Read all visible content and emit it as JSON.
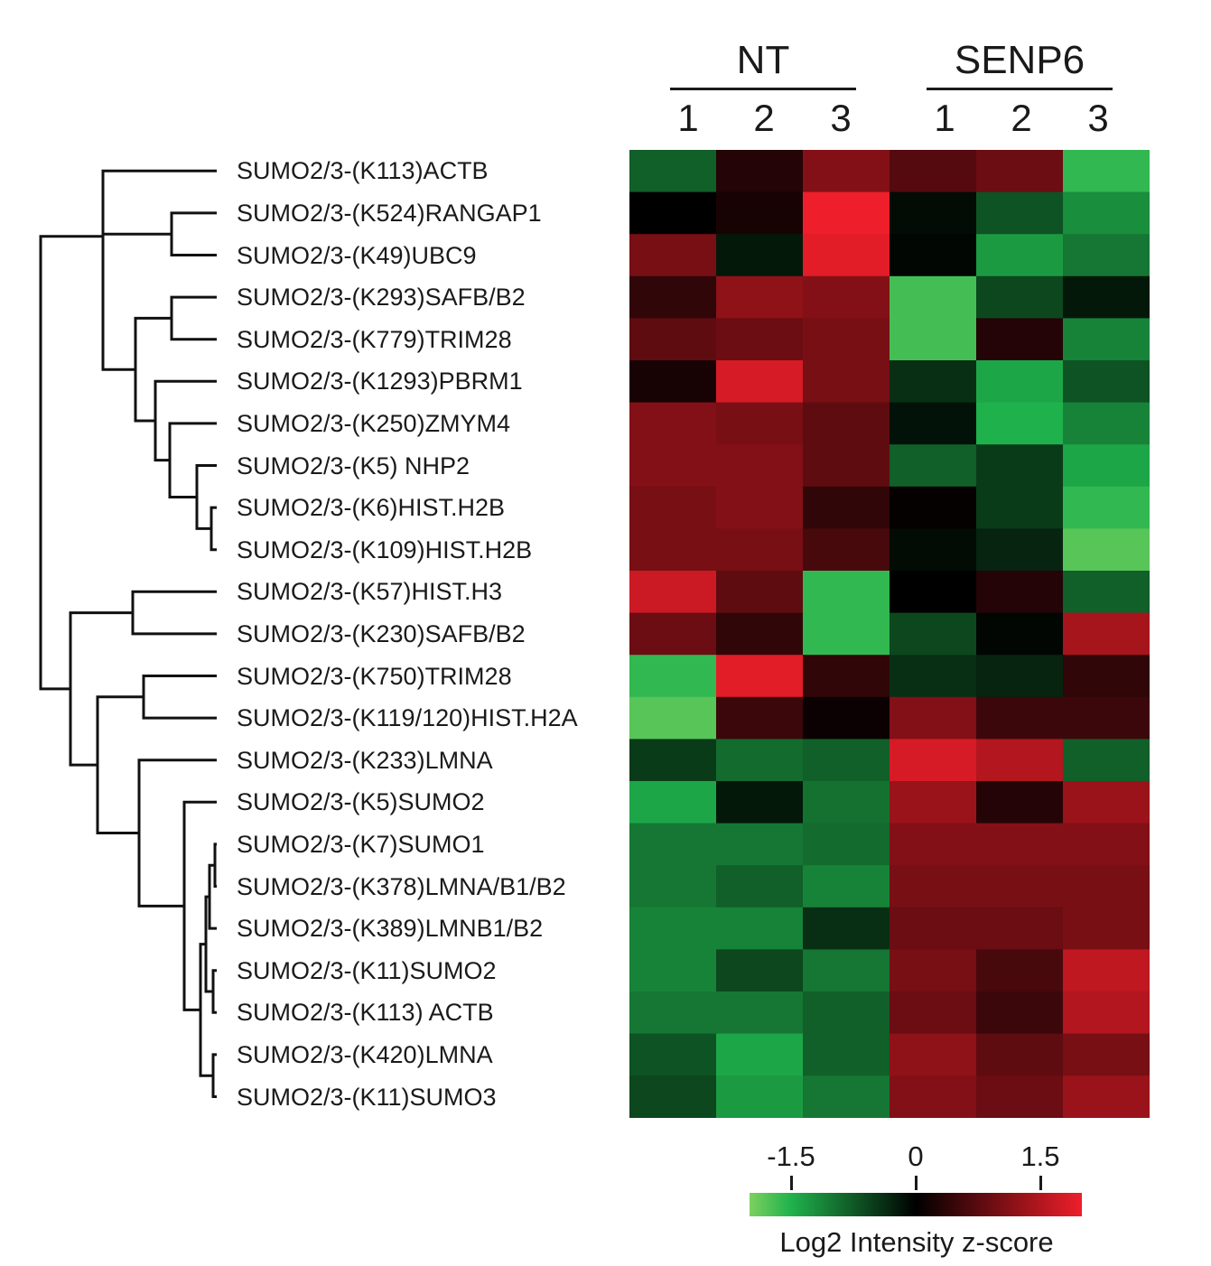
{
  "chart_data": {
    "type": "heatmap",
    "groups": [
      {
        "name": "NT",
        "columns": [
          "1",
          "2",
          "3"
        ]
      },
      {
        "name": "SENP6",
        "columns": [
          "1",
          "2",
          "3"
        ]
      }
    ],
    "rows": [
      "SUMO2/3-(K113)ACTB",
      "SUMO2/3-(K524)RANGAP1",
      "SUMO2/3-(K49)UBC9",
      "SUMO2/3-(K293)SAFB/B2",
      "SUMO2/3-(K779)TRIM28",
      "SUMO2/3-(K1293)PBRM1",
      "SUMO2/3-(K250)ZMYM4",
      "SUMO2/3-(K5) NHP2",
      "SUMO2/3-(K6)HIST.H2B",
      "SUMO2/3-(K109)HIST.H2B",
      "SUMO2/3-(K57)HIST.H3",
      "SUMO2/3-(K230)SAFB/B2",
      "SUMO2/3-(K750)TRIM28",
      "SUMO2/3-(K119/120)HIST.H2A",
      "SUMO2/3-(K233)LMNA",
      "SUMO2/3-(K5)SUMO2",
      "SUMO2/3-(K7)SUMO1",
      "SUMO2/3-(K378)LMNA/B1/B2",
      "SUMO2/3-(K389)LMNB1/B2",
      "SUMO2/3-(K11)SUMO2",
      "SUMO2/3-(K113) ACTB",
      "SUMO2/3-(K420)LMNA",
      "SUMO2/3-(K11)SUMO3"
    ],
    "values": [
      [
        -0.8,
        0.3,
        1.1,
        0.7,
        0.9,
        -1.6
      ],
      [
        0.0,
        0.2,
        2.0,
        -0.1,
        -0.7,
        -1.2
      ],
      [
        1.0,
        -0.2,
        1.9,
        -0.05,
        -1.3,
        -1.0
      ],
      [
        0.4,
        1.2,
        1.1,
        -1.7,
        -0.6,
        -0.2
      ],
      [
        0.8,
        0.9,
        1.0,
        -1.7,
        0.3,
        -1.1
      ],
      [
        0.2,
        1.8,
        1.0,
        -0.4,
        -1.4,
        -0.7
      ],
      [
        1.1,
        1.0,
        0.8,
        -0.15,
        -1.5,
        -1.1
      ],
      [
        1.1,
        1.1,
        0.8,
        -0.8,
        -0.5,
        -1.4
      ],
      [
        1.0,
        1.1,
        0.4,
        0.05,
        -0.5,
        -1.6
      ],
      [
        1.0,
        1.0,
        0.6,
        -0.1,
        -0.3,
        -1.8
      ],
      [
        1.7,
        0.8,
        -1.6,
        0.0,
        0.3,
        -0.8
      ],
      [
        0.9,
        0.4,
        -1.6,
        -0.6,
        -0.05,
        1.4
      ],
      [
        -1.6,
        1.9,
        0.4,
        -0.4,
        -0.3,
        0.4
      ],
      [
        -1.8,
        0.5,
        0.1,
        1.1,
        0.5,
        0.5
      ],
      [
        -0.5,
        -0.9,
        -0.8,
        1.8,
        1.5,
        -0.8
      ],
      [
        -1.4,
        -0.2,
        -0.95,
        1.3,
        0.3,
        1.3
      ],
      [
        -1.0,
        -1.0,
        -0.9,
        1.1,
        1.1,
        1.1
      ],
      [
        -1.0,
        -0.8,
        -1.1,
        1.0,
        1.0,
        1.0
      ],
      [
        -1.1,
        -1.1,
        -0.4,
        0.9,
        0.9,
        1.0
      ],
      [
        -1.1,
        -0.6,
        -1.0,
        1.0,
        0.6,
        1.6
      ],
      [
        -1.0,
        -1.0,
        -0.8,
        0.9,
        0.5,
        1.5
      ],
      [
        -0.7,
        -1.4,
        -0.8,
        1.2,
        0.8,
        1.0
      ],
      [
        -0.6,
        -1.3,
        -1.0,
        1.1,
        0.9,
        1.3
      ]
    ],
    "colorscale": {
      "stops": [
        {
          "value": -2.0,
          "color": "#7cd15f"
        },
        {
          "value": -1.5,
          "color": "#1fb24c"
        },
        {
          "value": 0.0,
          "color": "#000000"
        },
        {
          "value": 1.5,
          "color": "#b3161e"
        },
        {
          "value": 2.0,
          "color": "#ee1f2b"
        }
      ]
    },
    "colorbar_ticks": [
      "-1.5",
      "0",
      "1.5"
    ],
    "colorbar_tick_values": [
      -1.5,
      0,
      1.5
    ],
    "colorbar_range": [
      -2.0,
      2.0
    ],
    "colorbar_title": "Log2 Intensity z-score",
    "row_dendrogram": true
  }
}
